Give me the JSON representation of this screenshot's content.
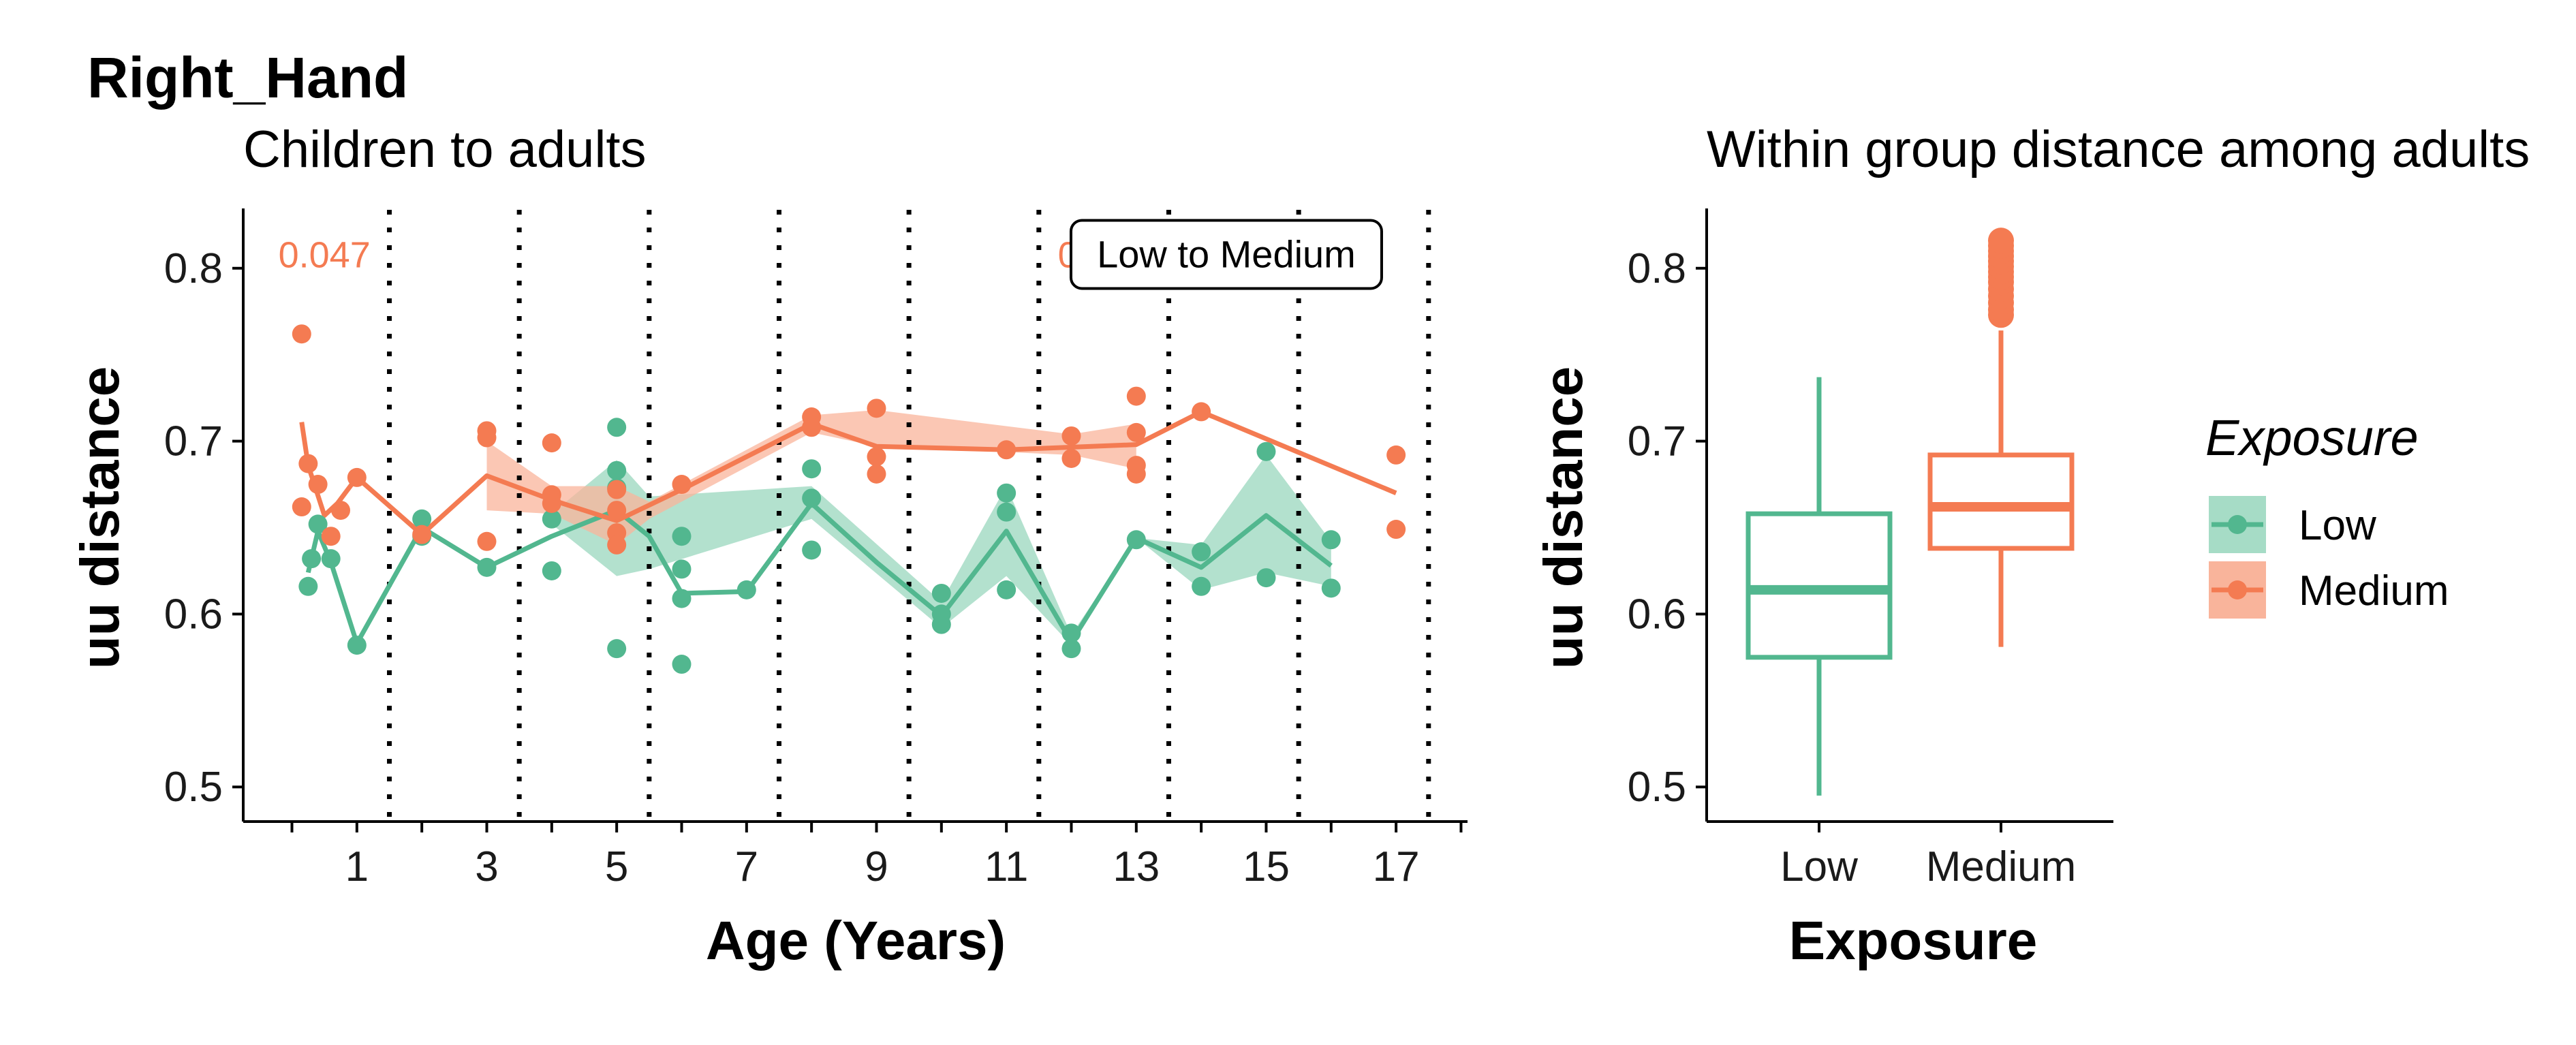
{
  "figure_title": "Right_Hand",
  "colors": {
    "Low": "#52b78f",
    "Medium": "#f47b52",
    "Low_fill": "#a6dcc6",
    "Medium_fill": "#f9b49b"
  },
  "legend": {
    "title": "Exposure",
    "items": [
      "Low",
      "Medium"
    ]
  },
  "chart_data": [
    {
      "type": "line",
      "title": "Children to adults",
      "xlabel": "Age (Years)",
      "ylabel": "uu distance",
      "xlim": [
        -0.75,
        18.1
      ],
      "ylim": [
        0.48,
        0.833
      ],
      "x_ticks": [
        1,
        3,
        5,
        7,
        9,
        11,
        13,
        15,
        17
      ],
      "x_minor_ticks": [
        0,
        2,
        4,
        6,
        8,
        10,
        12,
        14,
        16,
        18
      ],
      "y_ticks": [
        0.5,
        0.6,
        0.7,
        0.8
      ],
      "y_tick_labels": [
        "0.5",
        "0.6",
        "0.7",
        "0.8"
      ],
      "vlines": [
        1.5,
        3.5,
        5.5,
        7.5,
        9.5,
        11.5,
        13.5,
        15.5,
        17.5
      ],
      "annotations": [
        {
          "text": "0.047",
          "x": 0.5,
          "y": 0.808
        },
        {
          "text": "0.047",
          "x": 12.5,
          "y": 0.808
        }
      ],
      "label_box": {
        "text": "Low to Medium",
        "x": 14.25,
        "y": 0.808
      },
      "grid": false,
      "series": [
        {
          "name": "Low",
          "line": [
            [
              0.25,
              0.624
            ],
            [
              0.4,
              0.648
            ],
            [
              0.6,
              0.63
            ],
            [
              1,
              0.583
            ],
            [
              2,
              0.65
            ],
            [
              3,
              0.627
            ],
            [
              4,
              0.645
            ],
            [
              5,
              0.66
            ],
            [
              5.5,
              0.645
            ],
            [
              6,
              0.612
            ],
            [
              7,
              0.613
            ],
            [
              8,
              0.664
            ],
            [
              9,
              0.63
            ],
            [
              10,
              0.599
            ],
            [
              11,
              0.648
            ],
            [
              12,
              0.584
            ],
            [
              13,
              0.644
            ],
            [
              14,
              0.627
            ],
            [
              15,
              0.657
            ],
            [
              16,
              0.628
            ]
          ],
          "ribbon": [
            [
              3.9,
              0.655,
              0.655
            ],
            [
              5,
              0.622,
              0.689
            ],
            [
              5.5,
              0.626,
              0.668
            ],
            [
              8,
              0.655,
              0.674
            ],
            [
              10,
              0.592,
              0.607
            ],
            [
              11,
              0.622,
              0.674
            ],
            [
              12,
              0.582,
              0.588
            ],
            [
              13,
              0.644,
              0.644
            ],
            [
              14,
              0.614,
              0.64
            ],
            [
              15,
              0.624,
              0.692
            ],
            [
              16,
              0.616,
              0.642
            ]
          ],
          "points": [
            [
              0.25,
              0.616
            ],
            [
              0.3,
              0.632
            ],
            [
              0.4,
              0.652
            ],
            [
              0.6,
              0.632
            ],
            [
              1,
              0.582
            ],
            [
              2,
              0.655
            ],
            [
              2,
              0.645
            ],
            [
              3,
              0.627
            ],
            [
              4,
              0.655
            ],
            [
              4,
              0.625
            ],
            [
              5,
              0.708
            ],
            [
              5,
              0.683
            ],
            [
              5,
              0.673
            ],
            [
              5,
              0.58
            ],
            [
              6,
              0.645
            ],
            [
              6,
              0.626
            ],
            [
              6,
              0.609
            ],
            [
              6,
              0.571
            ],
            [
              7,
              0.614
            ],
            [
              8,
              0.684
            ],
            [
              8,
              0.667
            ],
            [
              8,
              0.637
            ],
            [
              10,
              0.612
            ],
            [
              10,
              0.6
            ],
            [
              10,
              0.594
            ],
            [
              11,
              0.67
            ],
            [
              11,
              0.659
            ],
            [
              11,
              0.614
            ],
            [
              12,
              0.589
            ],
            [
              12,
              0.58
            ],
            [
              13,
              0.643
            ],
            [
              14,
              0.636
            ],
            [
              14,
              0.616
            ],
            [
              15,
              0.694
            ],
            [
              15,
              0.621
            ],
            [
              16,
              0.643
            ],
            [
              16,
              0.615
            ]
          ]
        },
        {
          "name": "Medium",
          "line": [
            [
              0.15,
              0.711
            ],
            [
              0.25,
              0.686
            ],
            [
              0.5,
              0.657
            ],
            [
              0.7,
              0.664
            ],
            [
              1,
              0.679
            ],
            [
              2,
              0.646
            ],
            [
              3,
              0.68
            ],
            [
              4,
              0.666
            ],
            [
              5,
              0.654
            ],
            [
              6,
              0.672
            ],
            [
              8,
              0.71
            ],
            [
              9,
              0.697
            ],
            [
              11,
              0.695
            ],
            [
              13,
              0.698
            ],
            [
              14,
              0.717
            ],
            [
              17,
              0.67
            ]
          ],
          "ribbon": [
            [
              3,
              0.66,
              0.7
            ],
            [
              4,
              0.658,
              0.674
            ],
            [
              5,
              0.64,
              0.674
            ],
            [
              5.5,
              0.655,
              0.665
            ],
            [
              8,
              0.705,
              0.715
            ],
            [
              9,
              0.697,
              0.718
            ],
            [
              12,
              0.692,
              0.704
            ],
            [
              13,
              0.684,
              0.71
            ]
          ],
          "points": [
            [
              0.15,
              0.762
            ],
            [
              0.15,
              0.662
            ],
            [
              0.25,
              0.687
            ],
            [
              0.4,
              0.675
            ],
            [
              0.6,
              0.645
            ],
            [
              0.75,
              0.66
            ],
            [
              1,
              0.679
            ],
            [
              2,
              0.646
            ],
            [
              3,
              0.706
            ],
            [
              3,
              0.702
            ],
            [
              3,
              0.642
            ],
            [
              4,
              0.699
            ],
            [
              4,
              0.669
            ],
            [
              4,
              0.664
            ],
            [
              5,
              0.672
            ],
            [
              5,
              0.66
            ],
            [
              5,
              0.647
            ],
            [
              5,
              0.64
            ],
            [
              6,
              0.675
            ],
            [
              8,
              0.714
            ],
            [
              8,
              0.708
            ],
            [
              9,
              0.719
            ],
            [
              9,
              0.691
            ],
            [
              9,
              0.681
            ],
            [
              11,
              0.695
            ],
            [
              12,
              0.703
            ],
            [
              12,
              0.69
            ],
            [
              13,
              0.726
            ],
            [
              13,
              0.705
            ],
            [
              13,
              0.686
            ],
            [
              13,
              0.681
            ],
            [
              14,
              0.717
            ],
            [
              17,
              0.692
            ],
            [
              17,
              0.649
            ]
          ]
        }
      ]
    },
    {
      "type": "box",
      "title": "Within group distance among adults",
      "xlabel": "Exposure",
      "ylabel": "uu distance",
      "ylim": [
        0.48,
        0.833
      ],
      "y_ticks": [
        0.5,
        0.6,
        0.7,
        0.8
      ],
      "y_tick_labels": [
        "0.5",
        "0.6",
        "0.7",
        "0.8"
      ],
      "categories": [
        "Low",
        "Medium"
      ],
      "boxes": [
        {
          "name": "Low",
          "min": 0.495,
          "q1": 0.575,
          "median": 0.614,
          "q3": 0.658,
          "max": 0.737,
          "outliers": []
        },
        {
          "name": "Medium",
          "min": 0.581,
          "q1": 0.638,
          "median": 0.662,
          "q3": 0.692,
          "max": 0.764,
          "outliers": [
            0.773,
            0.776,
            0.78,
            0.784,
            0.788,
            0.792,
            0.795,
            0.798,
            0.801,
            0.804,
            0.807,
            0.81,
            0.813,
            0.816
          ]
        }
      ]
    }
  ]
}
